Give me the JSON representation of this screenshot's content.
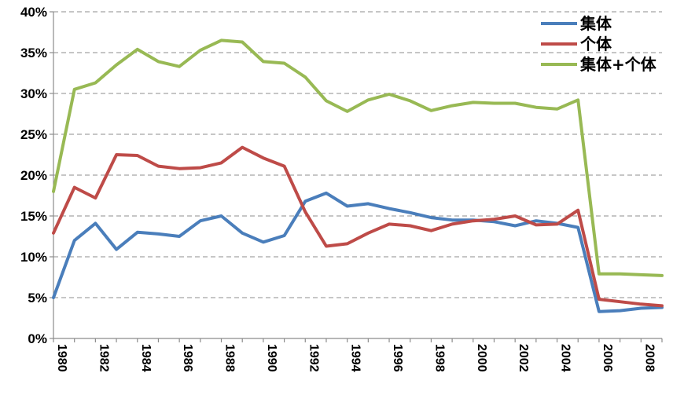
{
  "chart_data": {
    "type": "line",
    "x": [
      1980,
      1981,
      1982,
      1983,
      1984,
      1985,
      1986,
      1987,
      1988,
      1989,
      1990,
      1991,
      1992,
      1993,
      1994,
      1995,
      1996,
      1997,
      1998,
      1999,
      2000,
      2001,
      2002,
      2003,
      2004,
      2005,
      2006,
      2007,
      2008,
      2009
    ],
    "series": [
      {
        "name": "集体",
        "color": "#4a7ebb",
        "values": [
          5.0,
          12.0,
          14.1,
          10.9,
          13.0,
          12.8,
          12.5,
          14.4,
          15.0,
          12.9,
          11.8,
          12.6,
          16.8,
          17.8,
          16.2,
          16.5,
          15.9,
          15.4,
          14.8,
          14.5,
          14.5,
          14.3,
          13.8,
          14.4,
          14.1,
          13.6,
          3.3,
          3.4,
          3.7,
          3.8
        ]
      },
      {
        "name": "个体",
        "color": "#be4b48",
        "values": [
          12.9,
          18.5,
          17.2,
          22.5,
          22.4,
          21.1,
          20.8,
          20.9,
          21.5,
          23.4,
          22.1,
          21.1,
          15.5,
          11.3,
          11.6,
          12.9,
          14.0,
          13.8,
          13.2,
          14.0,
          14.4,
          14.6,
          15.0,
          13.9,
          14.0,
          15.7,
          4.8,
          4.5,
          4.2,
          4.0
        ]
      },
      {
        "name": "集体+个体",
        "color": "#98b954",
        "values": [
          18.0,
          30.5,
          31.3,
          33.5,
          35.4,
          33.9,
          33.3,
          35.3,
          36.5,
          36.3,
          33.9,
          33.7,
          32.0,
          29.1,
          27.8,
          29.2,
          29.9,
          29.1,
          27.9,
          28.5,
          28.9,
          28.8,
          28.8,
          28.3,
          28.1,
          29.2,
          7.9,
          7.9,
          7.8,
          7.7
        ]
      }
    ],
    "y_ticks": [
      "0%",
      "5%",
      "10%",
      "15%",
      "20%",
      "25%",
      "30%",
      "35%",
      "40%"
    ],
    "x_ticks": [
      "1980",
      "1982",
      "1984",
      "1986",
      "1988",
      "1990",
      "1992",
      "1994",
      "1996",
      "1998",
      "2000",
      "2002",
      "2004",
      "2006",
      "2008"
    ],
    "ylim": [
      0,
      40
    ],
    "xlim": [
      1980,
      2009
    ],
    "grid": true,
    "legend_position": "top-right",
    "title": "",
    "xlabel": "",
    "ylabel": ""
  }
}
